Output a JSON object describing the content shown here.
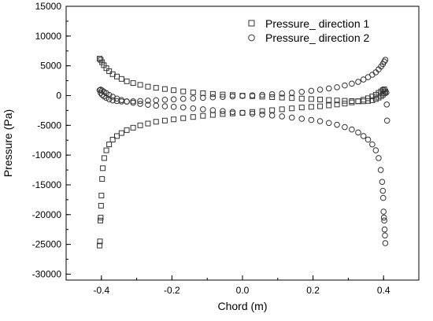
{
  "chart_data": {
    "type": "scatter",
    "title": "",
    "xlabel": "Chord (m)",
    "ylabel": "Pressure (Pa)",
    "xlim": [
      -0.5,
      0.5
    ],
    "ylim": [
      -31000,
      15000
    ],
    "x_ticks": [
      -0.4,
      -0.2,
      0.0,
      0.2,
      0.4
    ],
    "x_tick_labels": [
      "-0.4",
      "-0.2",
      "0.0",
      "0.2",
      "0.4"
    ],
    "y_ticks": [
      -30000,
      -25000,
      -20000,
      -15000,
      -10000,
      -5000,
      0,
      5000,
      10000,
      15000
    ],
    "y_tick_labels": [
      "-30000",
      "-25000",
      "-20000",
      "-15000",
      "-10000",
      "-5000",
      "0",
      "5000",
      "10000",
      "15000"
    ],
    "grid": false,
    "legend_position": "top-right",
    "series": [
      {
        "name": "Pressure_ direction 1",
        "marker": "square",
        "points": [
          [
            -0.405,
            6200
          ],
          [
            -0.402,
            6000
          ],
          [
            -0.398,
            5600
          ],
          [
            -0.393,
            5100
          ],
          [
            -0.386,
            4600
          ],
          [
            -0.378,
            4100
          ],
          [
            -0.368,
            3600
          ],
          [
            -0.356,
            3200
          ],
          [
            -0.343,
            2800
          ],
          [
            -0.328,
            2400
          ],
          [
            -0.31,
            2100
          ],
          [
            -0.29,
            1800
          ],
          [
            -0.268,
            1500
          ],
          [
            -0.245,
            1300
          ],
          [
            -0.22,
            1100
          ],
          [
            -0.195,
            900
          ],
          [
            -0.168,
            700
          ],
          [
            -0.14,
            550
          ],
          [
            -0.112,
            400
          ],
          [
            -0.084,
            280
          ],
          [
            -0.056,
            180
          ],
          [
            -0.028,
            90
          ],
          [
            0.0,
            -20
          ],
          [
            0.028,
            -100
          ],
          [
            0.056,
            -180
          ],
          [
            0.084,
            -260
          ],
          [
            0.112,
            -340
          ],
          [
            0.14,
            -420
          ],
          [
            0.168,
            -500
          ],
          [
            0.195,
            -580
          ],
          [
            0.22,
            -660
          ],
          [
            0.245,
            -740
          ],
          [
            0.268,
            -820
          ],
          [
            0.29,
            -880
          ],
          [
            0.31,
            -930
          ],
          [
            0.328,
            -960
          ],
          [
            0.343,
            -960
          ],
          [
            0.356,
            -900
          ],
          [
            0.368,
            -780
          ],
          [
            0.378,
            -580
          ],
          [
            0.386,
            -350
          ],
          [
            0.393,
            -100
          ],
          [
            0.398,
            150
          ],
          [
            0.402,
            400
          ],
          [
            0.405,
            700
          ],
          [
            -0.405,
            -25200
          ],
          [
            -0.404,
            -24500
          ],
          [
            -0.403,
            -21000
          ],
          [
            -0.402,
            -20500
          ],
          [
            -0.401,
            -18500
          ],
          [
            -0.4,
            -16800
          ],
          [
            -0.398,
            -14000
          ],
          [
            -0.396,
            -12200
          ],
          [
            -0.392,
            -10500
          ],
          [
            -0.386,
            -9200
          ],
          [
            -0.378,
            -8200
          ],
          [
            -0.368,
            -7400
          ],
          [
            -0.356,
            -6800
          ],
          [
            -0.343,
            -6300
          ],
          [
            -0.328,
            -5800
          ],
          [
            -0.31,
            -5400
          ],
          [
            -0.29,
            -5000
          ],
          [
            -0.268,
            -4700
          ],
          [
            -0.245,
            -4400
          ],
          [
            -0.22,
            -4200
          ],
          [
            -0.195,
            -4000
          ],
          [
            -0.168,
            -3800
          ],
          [
            -0.14,
            -3600
          ],
          [
            -0.112,
            -3400
          ],
          [
            -0.084,
            -3250
          ],
          [
            -0.056,
            -3100
          ],
          [
            -0.028,
            -3000
          ],
          [
            0.0,
            -2900
          ],
          [
            0.028,
            -2750
          ],
          [
            0.056,
            -2600
          ],
          [
            0.084,
            -2450
          ],
          [
            0.112,
            -2300
          ],
          [
            0.14,
            -2150
          ],
          [
            0.168,
            -2000
          ],
          [
            0.195,
            -1900
          ],
          [
            0.22,
            -1800
          ],
          [
            0.245,
            -1650
          ],
          [
            0.268,
            -1500
          ],
          [
            0.29,
            -1350
          ],
          [
            0.31,
            -1150
          ],
          [
            0.328,
            -950
          ],
          [
            0.343,
            -700
          ],
          [
            0.356,
            -450
          ],
          [
            0.368,
            -150
          ],
          [
            0.378,
            150
          ],
          [
            0.386,
            450
          ],
          [
            0.393,
            700
          ],
          [
            0.398,
            900
          ],
          [
            0.402,
            1050
          ]
        ]
      },
      {
        "name": "Pressure_ direction 2",
        "marker": "circle",
        "points": [
          [
            0.405,
            6000
          ],
          [
            0.402,
            5700
          ],
          [
            0.398,
            5300
          ],
          [
            0.393,
            4900
          ],
          [
            0.386,
            4400
          ],
          [
            0.378,
            3900
          ],
          [
            0.368,
            3500
          ],
          [
            0.356,
            3100
          ],
          [
            0.343,
            2700
          ],
          [
            0.328,
            2300
          ],
          [
            0.31,
            2000
          ],
          [
            0.29,
            1700
          ],
          [
            0.268,
            1400
          ],
          [
            0.245,
            1200
          ],
          [
            0.22,
            1000
          ],
          [
            0.195,
            800
          ],
          [
            0.168,
            620
          ],
          [
            0.14,
            480
          ],
          [
            0.112,
            340
          ],
          [
            0.084,
            230
          ],
          [
            0.056,
            120
          ],
          [
            0.028,
            40
          ],
          [
            0.0,
            -60
          ],
          [
            -0.028,
            -140
          ],
          [
            -0.056,
            -220
          ],
          [
            -0.084,
            -300
          ],
          [
            -0.112,
            -380
          ],
          [
            -0.14,
            -460
          ],
          [
            -0.168,
            -540
          ],
          [
            -0.195,
            -620
          ],
          [
            -0.22,
            -700
          ],
          [
            -0.245,
            -780
          ],
          [
            -0.268,
            -860
          ],
          [
            -0.29,
            -920
          ],
          [
            -0.31,
            -960
          ],
          [
            -0.328,
            -990
          ],
          [
            -0.343,
            -980
          ],
          [
            -0.356,
            -920
          ],
          [
            -0.368,
            -800
          ],
          [
            -0.378,
            -600
          ],
          [
            -0.386,
            -380
          ],
          [
            -0.393,
            -120
          ],
          [
            -0.398,
            150
          ],
          [
            -0.402,
            450
          ],
          [
            -0.405,
            900
          ],
          [
            0.405,
            -24800
          ],
          [
            0.404,
            -23500
          ],
          [
            0.403,
            -22500
          ],
          [
            0.402,
            -21000
          ],
          [
            0.401,
            -20500
          ],
          [
            0.4,
            -19500
          ],
          [
            0.399,
            -17200
          ],
          [
            0.398,
            -16000
          ],
          [
            0.396,
            -14500
          ],
          [
            0.392,
            -12500
          ],
          [
            0.386,
            -10500
          ],
          [
            0.378,
            -9200
          ],
          [
            0.368,
            -8200
          ],
          [
            0.356,
            -7400
          ],
          [
            0.343,
            -6800
          ],
          [
            0.328,
            -6200
          ],
          [
            0.31,
            -5700
          ],
          [
            0.29,
            -5300
          ],
          [
            0.268,
            -4900
          ],
          [
            0.245,
            -4600
          ],
          [
            0.22,
            -4300
          ],
          [
            0.195,
            -4100
          ],
          [
            0.168,
            -3900
          ],
          [
            0.14,
            -3700
          ],
          [
            0.112,
            -3500
          ],
          [
            0.084,
            -3350
          ],
          [
            0.056,
            -3200
          ],
          [
            0.028,
            -3050
          ],
          [
            0.0,
            -2900
          ],
          [
            -0.028,
            -2750
          ],
          [
            -0.056,
            -2600
          ],
          [
            -0.084,
            -2450
          ],
          [
            -0.112,
            -2300
          ],
          [
            -0.14,
            -2150
          ],
          [
            -0.168,
            -2000
          ],
          [
            -0.195,
            -1900
          ],
          [
            -0.22,
            -1800
          ],
          [
            -0.245,
            -1700
          ],
          [
            -0.268,
            -1550
          ],
          [
            -0.29,
            -1400
          ],
          [
            -0.31,
            -1200
          ],
          [
            -0.328,
            -1000
          ],
          [
            -0.343,
            -750
          ],
          [
            -0.356,
            -500
          ],
          [
            -0.368,
            -200
          ],
          [
            -0.378,
            100
          ],
          [
            -0.386,
            400
          ],
          [
            -0.393,
            650
          ],
          [
            -0.398,
            850
          ],
          [
            -0.402,
            1000
          ],
          [
            0.41,
            -4200
          ],
          [
            0.408,
            500
          ],
          [
            0.409,
            -1500
          ]
        ]
      }
    ],
    "colors": {
      "marker_stroke": "#333333",
      "axis": "#000000",
      "background": "#ffffff"
    }
  }
}
